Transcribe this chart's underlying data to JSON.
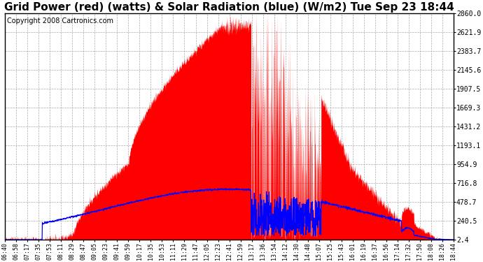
{
  "title": "Grid Power (red) (watts) & Solar Radiation (blue) (W/m2) Tue Sep 23 18:44",
  "copyright": "Copyright 2008 Cartronics.com",
  "yticks": [
    2.4,
    240.5,
    478.7,
    716.8,
    954.9,
    1193.1,
    1431.2,
    1669.3,
    1907.5,
    2145.6,
    2383.7,
    2621.9,
    2860.0
  ],
  "ymin": 2.4,
  "ymax": 2860.0,
  "bg_color": "#ffffff",
  "grid_color": "#aaaaaa",
  "fill_color": "#ff0000",
  "line_color": "#0000ff",
  "title_fontsize": 11,
  "copyright_fontsize": 7,
  "xtick_labels": [
    "06:40",
    "06:58",
    "07:17",
    "07:35",
    "07:53",
    "08:11",
    "08:29",
    "08:47",
    "09:05",
    "09:23",
    "09:41",
    "09:59",
    "10:17",
    "10:35",
    "10:53",
    "11:11",
    "11:29",
    "11:47",
    "12:05",
    "12:23",
    "12:41",
    "12:59",
    "13:17",
    "13:36",
    "13:54",
    "14:12",
    "14:30",
    "14:48",
    "15:07",
    "15:25",
    "15:43",
    "16:01",
    "16:19",
    "16:37",
    "16:56",
    "17:14",
    "17:32",
    "17:50",
    "18:08",
    "18:26",
    "18:44"
  ]
}
